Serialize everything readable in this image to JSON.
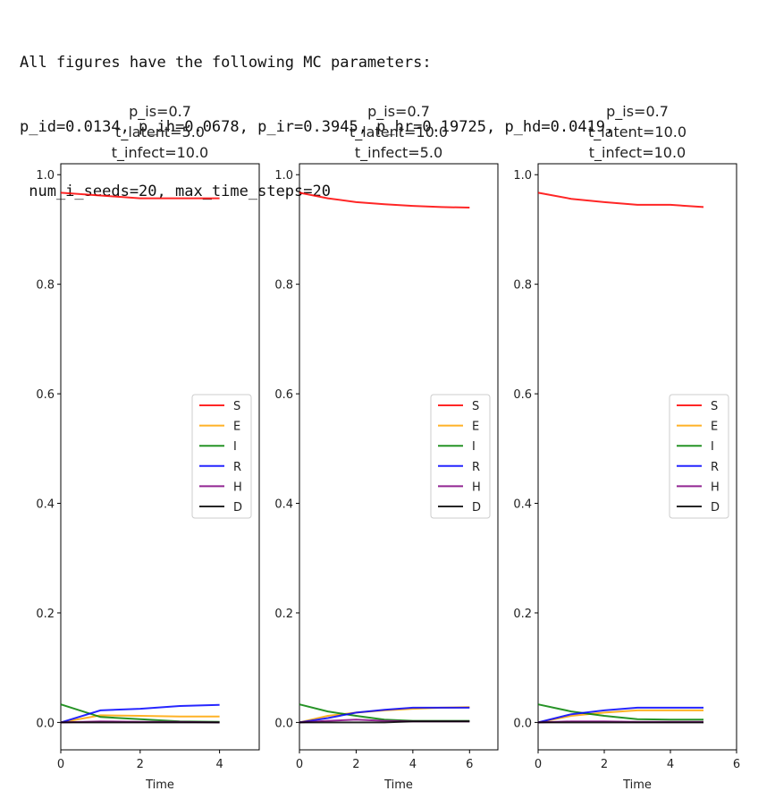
{
  "header": {
    "line1": "All figures have the following MC parameters:",
    "line2": "p_id=0.0134, p_ih=0.0678, p_ir=0.3945, p_hr=0.19725, p_hd=0.0419,",
    "line3": " num_i_seeds=20, max_time_steps=20"
  },
  "colors": {
    "S": "#ff0000",
    "E": "#ffa500",
    "I": "#008000",
    "R": "#0000ff",
    "H": "#800080",
    "D": "#000000"
  },
  "chart_data": [
    {
      "type": "line",
      "title": [
        "p_is=0.7",
        "t_latent=5.0",
        "t_infect=10.0"
      ],
      "xlabel": "Time",
      "ylabel": "",
      "xlim": [
        0,
        5
      ],
      "ylim": [
        -0.05,
        1.02
      ],
      "xticks": [
        0,
        2,
        4
      ],
      "yticks": [
        0.0,
        0.2,
        0.4,
        0.6,
        0.8,
        1.0
      ],
      "legend": "center-right",
      "x": [
        0,
        1,
        2,
        3,
        4
      ],
      "series": [
        {
          "name": "S",
          "values": [
            0.967,
            0.962,
            0.957,
            0.957,
            0.957
          ]
        },
        {
          "name": "E",
          "values": [
            0.0,
            0.013,
            0.012,
            0.011,
            0.011
          ]
        },
        {
          "name": "I",
          "values": [
            0.033,
            0.01,
            0.006,
            0.002,
            0.001
          ]
        },
        {
          "name": "R",
          "values": [
            0.0,
            0.022,
            0.025,
            0.03,
            0.032
          ]
        },
        {
          "name": "H",
          "values": [
            0.0,
            0.002,
            0.001,
            0.001,
            0.0
          ]
        },
        {
          "name": "D",
          "values": [
            0.0,
            0.0,
            0.0,
            0.0,
            0.0
          ]
        }
      ]
    },
    {
      "type": "line",
      "title": [
        "p_is=0.7",
        "t_latent=10.0",
        "t_infect=5.0"
      ],
      "xlabel": "Time",
      "ylabel": "",
      "xlim": [
        0,
        7
      ],
      "ylim": [
        -0.05,
        1.02
      ],
      "xticks": [
        0,
        2,
        4,
        6
      ],
      "yticks": [
        0.0,
        0.2,
        0.4,
        0.6,
        0.8,
        1.0
      ],
      "legend": "center-right",
      "x": [
        0,
        1,
        2,
        3,
        4,
        5,
        6
      ],
      "series": [
        {
          "name": "S",
          "values": [
            0.967,
            0.957,
            0.95,
            0.946,
            0.943,
            0.941,
            0.94
          ]
        },
        {
          "name": "E",
          "values": [
            0.0,
            0.012,
            0.018,
            0.022,
            0.025,
            0.027,
            0.028
          ]
        },
        {
          "name": "I",
          "values": [
            0.033,
            0.02,
            0.012,
            0.005,
            0.003,
            0.003,
            0.003
          ]
        },
        {
          "name": "R",
          "values": [
            0.0,
            0.008,
            0.018,
            0.023,
            0.027,
            0.027,
            0.027
          ]
        },
        {
          "name": "H",
          "values": [
            0.0,
            0.003,
            0.005,
            0.003,
            0.002,
            0.002,
            0.002
          ]
        },
        {
          "name": "D",
          "values": [
            0.0,
            0.0,
            0.0,
            0.0,
            0.002,
            0.002,
            0.002
          ]
        }
      ]
    },
    {
      "type": "line",
      "title": [
        "p_is=0.7",
        "t_latent=10.0",
        "t_infect=10.0"
      ],
      "xlabel": "Time",
      "ylabel": "",
      "xlim": [
        0,
        6
      ],
      "ylim": [
        -0.05,
        1.02
      ],
      "xticks": [
        0,
        2,
        4,
        6
      ],
      "yticks": [
        0.0,
        0.2,
        0.4,
        0.6,
        0.8,
        1.0
      ],
      "legend": "center-right",
      "x": [
        0,
        1,
        2,
        3,
        4,
        5
      ],
      "series": [
        {
          "name": "S",
          "values": [
            0.967,
            0.956,
            0.95,
            0.945,
            0.945,
            0.941
          ]
        },
        {
          "name": "E",
          "values": [
            0.0,
            0.012,
            0.018,
            0.022,
            0.022,
            0.022
          ]
        },
        {
          "name": "I",
          "values": [
            0.033,
            0.02,
            0.012,
            0.006,
            0.005,
            0.005
          ]
        },
        {
          "name": "R",
          "values": [
            0.0,
            0.015,
            0.022,
            0.027,
            0.027,
            0.027
          ]
        },
        {
          "name": "H",
          "values": [
            0.0,
            0.002,
            0.002,
            0.001,
            0.001,
            0.001
          ]
        },
        {
          "name": "D",
          "values": [
            0.0,
            0.0,
            0.0,
            0.0,
            0.0,
            0.0
          ]
        }
      ]
    }
  ]
}
